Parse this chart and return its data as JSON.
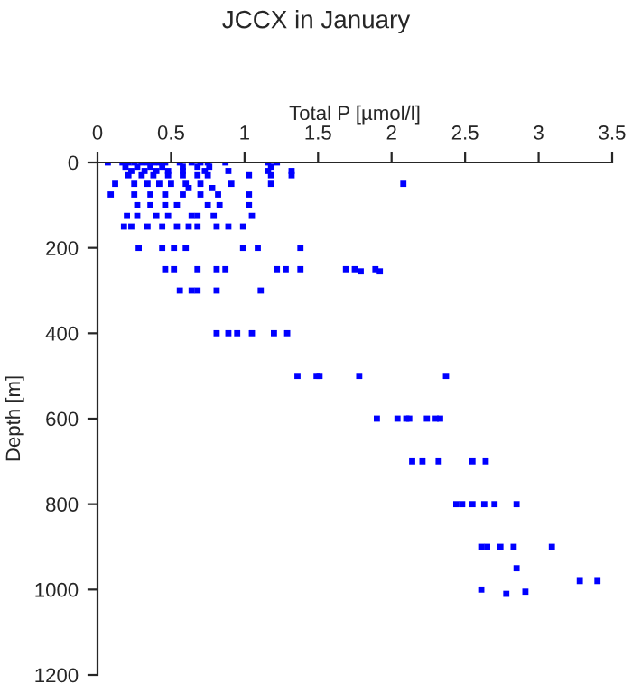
{
  "chart_data": {
    "type": "scatter",
    "title": "JCCX in January",
    "xlabel": "Total P [µmol/l]",
    "ylabel": "Depth [m]",
    "x": [
      0.07,
      0.17,
      0.21,
      0.25,
      0.3,
      0.34,
      0.38,
      0.42,
      0.46,
      0.56,
      0.64,
      0.7,
      0.75,
      0.87,
      1.16,
      1.22,
      0.19,
      0.27,
      0.36,
      0.44,
      0.58,
      0.68,
      0.76,
      1.18,
      0.23,
      0.32,
      0.4,
      0.48,
      0.58,
      0.73,
      0.89,
      1.16,
      1.32,
      0.21,
      0.3,
      0.38,
      0.48,
      0.58,
      0.68,
      0.75,
      1.03,
      1.18,
      1.32,
      0.12,
      0.25,
      0.34,
      0.42,
      0.5,
      0.6,
      0.7,
      0.91,
      1.18,
      2.08,
      0.62,
      0.78,
      0.09,
      0.25,
      0.36,
      0.46,
      0.58,
      0.7,
      0.82,
      1.03,
      0.27,
      0.36,
      0.46,
      0.54,
      0.75,
      0.83,
      1.03,
      0.2,
      0.27,
      0.4,
      0.48,
      0.64,
      0.68,
      0.79,
      1.05,
      0.18,
      0.23,
      0.34,
      0.44,
      0.54,
      0.62,
      0.68,
      0.81,
      0.89,
      0.99,
      0.28,
      0.44,
      0.52,
      0.6,
      0.99,
      1.09,
      1.38,
      0.46,
      0.52,
      0.68,
      0.81,
      0.87,
      1.22,
      1.28,
      1.38,
      1.69,
      1.75,
      1.79,
      1.89,
      1.92,
      0.56,
      0.64,
      0.68,
      0.81,
      1.11,
      0.81,
      0.89,
      0.95,
      1.05,
      1.2,
      1.29,
      1.36,
      1.49,
      1.51,
      1.78,
      2.37,
      1.9,
      2.04,
      2.1,
      2.12,
      2.24,
      2.3,
      2.33,
      2.14,
      2.21,
      2.32,
      2.55,
      2.64,
      2.44,
      2.48,
      2.55,
      2.63,
      2.7,
      2.85,
      2.61,
      2.65,
      2.74,
      2.83,
      3.09,
      2.85,
      3.28,
      3.4,
      2.61,
      2.78,
      2.91
    ],
    "values": [
      0,
      0,
      0,
      0,
      0,
      0,
      0,
      0,
      0,
      0,
      0,
      0,
      0,
      0,
      0,
      0,
      10,
      10,
      10,
      10,
      10,
      10,
      10,
      10,
      20,
      20,
      20,
      20,
      20,
      20,
      20,
      20,
      20,
      30,
      30,
      30,
      30,
      30,
      30,
      30,
      30,
      30,
      30,
      50,
      50,
      50,
      50,
      50,
      50,
      50,
      50,
      50,
      50,
      60,
      60,
      75,
      75,
      75,
      75,
      75,
      75,
      75,
      75,
      100,
      100,
      100,
      100,
      100,
      100,
      100,
      125,
      125,
      125,
      125,
      125,
      125,
      125,
      125,
      150,
      150,
      150,
      150,
      150,
      150,
      150,
      150,
      150,
      150,
      200,
      200,
      200,
      200,
      200,
      200,
      200,
      250,
      250,
      250,
      250,
      250,
      250,
      250,
      250,
      250,
      250,
      255,
      250,
      255,
      300,
      300,
      300,
      300,
      300,
      400,
      400,
      400,
      400,
      400,
      400,
      500,
      500,
      500,
      500,
      500,
      600,
      600,
      600,
      600,
      600,
      600,
      600,
      700,
      700,
      700,
      700,
      700,
      800,
      800,
      800,
      800,
      800,
      800,
      900,
      900,
      900,
      900,
      900,
      950,
      980,
      980,
      1000,
      1010,
      1005
    ],
    "color": "#0000ff",
    "marker": "square",
    "xlim": [
      0,
      3.5
    ],
    "xticks": [
      0,
      0.5,
      1,
      1.5,
      2,
      2.5,
      3,
      3.5
    ],
    "ylim": [
      1200,
      0
    ],
    "yticks": [
      0,
      200,
      400,
      600,
      800,
      1000,
      1200
    ],
    "grid": false,
    "legend": false
  }
}
